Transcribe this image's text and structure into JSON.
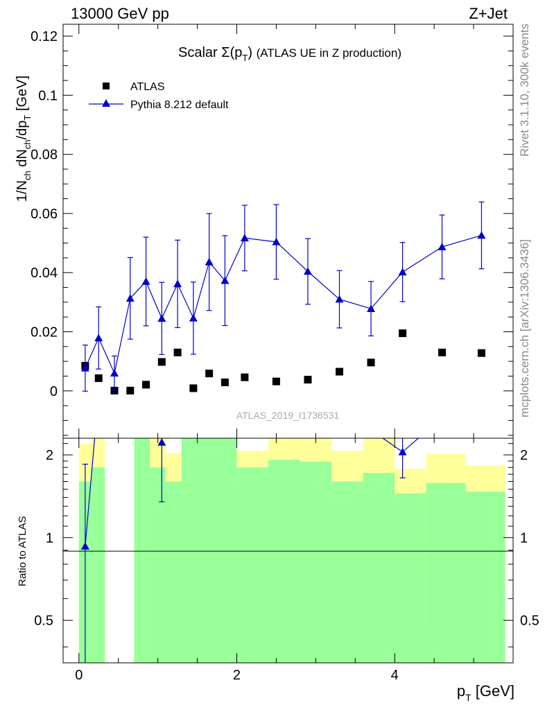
{
  "header": {
    "left": "13000 GeV pp",
    "right": "Z+Jet"
  },
  "side_labels": {
    "rivet": "Rivet 3.1.10,  300k events",
    "mcplots": "mcplots.cern.ch [arXiv:1306.3436]"
  },
  "colors": {
    "data": "#000000",
    "mc": "#0000cc",
    "band_inner": "#99ff99",
    "band_outer": "#ffff99"
  },
  "chart_data": [
    {
      "type": "scatter",
      "panel": "main",
      "title": "Scalar Σ(pT) (ATLAS UE in Z production)",
      "analysis_label": "ATLAS_2019_I1736531",
      "xlabel": "pT [GeV]",
      "ylabel": "1/Nch dNch/dpT [GeV]",
      "xlim": [
        -0.2,
        5.5
      ],
      "ylim": [
        -0.016,
        0.124
      ],
      "yticks": [
        "0",
        "0.02",
        "0.04",
        "0.06",
        "0.08",
        "0.1",
        "0.12"
      ],
      "xticks": [
        "0",
        "2",
        "4"
      ],
      "legend": {
        "position": "top-left",
        "entries": [
          "ATLAS",
          "Pythia 8.212 default"
        ]
      },
      "series": [
        {
          "name": "ATLAS",
          "marker": "square",
          "x": [
            0.08,
            0.25,
            0.45,
            0.65,
            0.85,
            1.05,
            1.25,
            1.45,
            1.65,
            1.85,
            2.1,
            2.5,
            2.9,
            3.3,
            3.7,
            4.1,
            4.6,
            5.1
          ],
          "y": [
            0.0085,
            0.0043,
            0.0001,
            0.0001,
            0.0021,
            0.0098,
            0.013,
            0.0009,
            0.0059,
            0.0029,
            0.0046,
            0.0032,
            0.0038,
            0.0065,
            0.0096,
            0.0195,
            0.013,
            0.0128
          ]
        },
        {
          "name": "Pythia 8.212 default",
          "marker": "triangle",
          "x": [
            0.08,
            0.25,
            0.45,
            0.65,
            0.85,
            1.05,
            1.25,
            1.45,
            1.65,
            1.85,
            2.1,
            2.5,
            2.9,
            3.3,
            3.7,
            4.1,
            4.6,
            5.1
          ],
          "y": [
            0.0077,
            0.0179,
            0.006,
            0.0313,
            0.037,
            0.0245,
            0.0362,
            0.0246,
            0.0436,
            0.0373,
            0.0517,
            0.0504,
            0.0404,
            0.031,
            0.0278,
            0.0402,
            0.0487,
            0.0526
          ],
          "yerr": [
            0.0078,
            0.0105,
            0.0058,
            0.0138,
            0.015,
            0.0122,
            0.0148,
            0.0122,
            0.0164,
            0.0152,
            0.0111,
            0.0126,
            0.0111,
            0.0097,
            0.0092,
            0.01,
            0.0108,
            0.0113
          ]
        }
      ]
    },
    {
      "type": "scatter",
      "panel": "ratio",
      "ylabel": "Ratio to ATLAS",
      "xlabel": "pT [GeV]",
      "xlim": [
        -0.2,
        5.5
      ],
      "ylim": [
        0.35,
        2.3
      ],
      "yticks": [
        "0.5",
        "1",
        "2"
      ],
      "bands": {
        "edges": [
          0,
          0.16,
          0.33,
          0.5,
          0.7,
          0.9,
          1.1,
          1.3,
          1.5,
          1.7,
          2.0,
          2.4,
          2.8,
          3.2,
          3.6,
          4.0,
          4.4,
          4.9,
          5.4
        ],
        "inner_lo": [
          0.35,
          0.35,
          null,
          null,
          0.35,
          0.35,
          0.35,
          0.35,
          0.35,
          0.35,
          0.35,
          0.35,
          0.35,
          0.35,
          0.35,
          0.35,
          0.35,
          0.35
        ],
        "inner_hi": [
          1.6,
          1.8,
          null,
          null,
          2.3,
          1.8,
          1.6,
          2.3,
          2.3,
          2.3,
          1.8,
          1.92,
          1.89,
          1.6,
          1.72,
          1.45,
          1.58,
          1.47
        ],
        "outer_lo": [
          0.35,
          0.35,
          null,
          null,
          0.35,
          0.35,
          0.35,
          0.35,
          0.35,
          0.35,
          0.35,
          0.35,
          0.35,
          0.35,
          0.35,
          0.35,
          0.35,
          0.35
        ],
        "outer_hi": [
          2.3,
          2.3,
          null,
          null,
          2.3,
          2.3,
          2.3,
          2.3,
          2.3,
          2.3,
          2.3,
          2.3,
          2.3,
          2.3,
          2.3,
          2.3,
          2.3,
          2.3
        ],
        "outer_lo_visible": [
          0.37,
          0.35,
          null,
          null,
          0.35,
          0.35,
          0.47,
          0.35,
          0.35,
          0.35,
          0.38,
          0.35,
          0.35,
          0.42,
          0.35,
          0.67,
          0.48,
          0.65
        ],
        "outer_hi_visible": [
          2.2,
          2.3,
          null,
          null,
          2.3,
          2.3,
          2.03,
          2.3,
          2.3,
          2.3,
          2.07,
          2.3,
          2.3,
          2.07,
          2.3,
          1.78,
          2.02,
          1.83
        ]
      },
      "series": [
        {
          "name": "Pythia 8.212 default",
          "x": [
            0.08,
            1.05,
            4.1
          ],
          "y": [
            0.93,
            2.3,
            2.05
          ],
          "yerr_lo": [
            0.6,
            0.95,
            0.4
          ],
          "yerr_hi": [
            0.92,
            0.0,
            0.25
          ]
        }
      ]
    }
  ]
}
